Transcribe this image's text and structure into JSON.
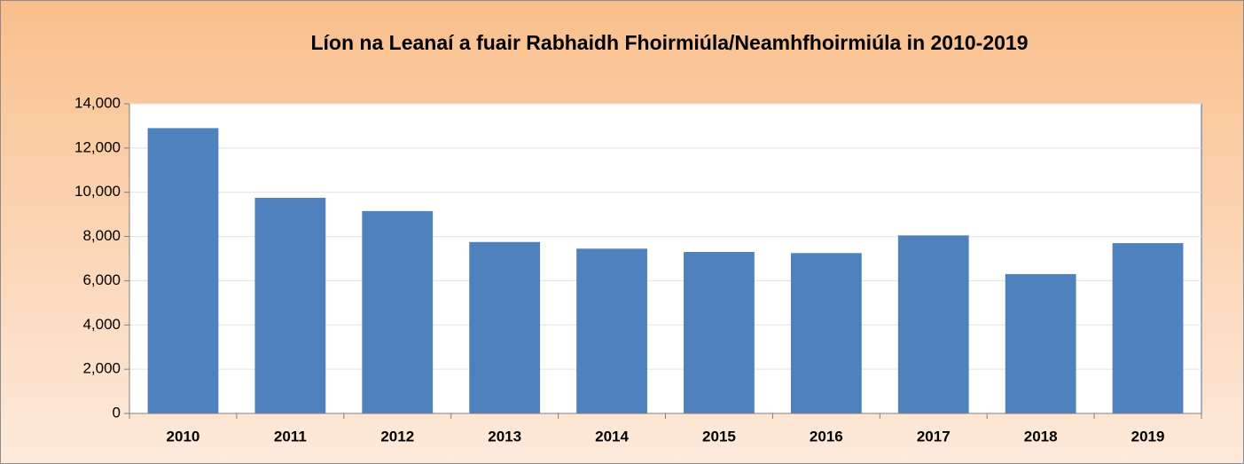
{
  "chart_data": {
    "type": "bar",
    "title": "Líon na Leanaí a fuair Rabhaidh Fhoirmiúla/Neamhfhoirmiúla in 2010-2019",
    "categories": [
      "2010",
      "2011",
      "2012",
      "2013",
      "2014",
      "2015",
      "2016",
      "2017",
      "2018",
      "2019"
    ],
    "values": [
      12900,
      9750,
      9150,
      7750,
      7450,
      7300,
      7250,
      8050,
      6300,
      7700
    ],
    "color": "#4f81bd",
    "ylim": [
      0,
      14000
    ],
    "yticks": [
      0,
      {
        "value": 2000,
        "label": "2,000"
      },
      {
        "value": 4000,
        "label": "4,000"
      },
      {
        "value": 6000,
        "label": "6,000"
      },
      {
        "value": 8000,
        "label": "8,000"
      },
      {
        "value": 10000,
        "label": "10,000"
      },
      {
        "value": 12000,
        "label": "12,000"
      },
      {
        "value": 14000,
        "label": "14,000"
      }
    ],
    "grid": true
  }
}
